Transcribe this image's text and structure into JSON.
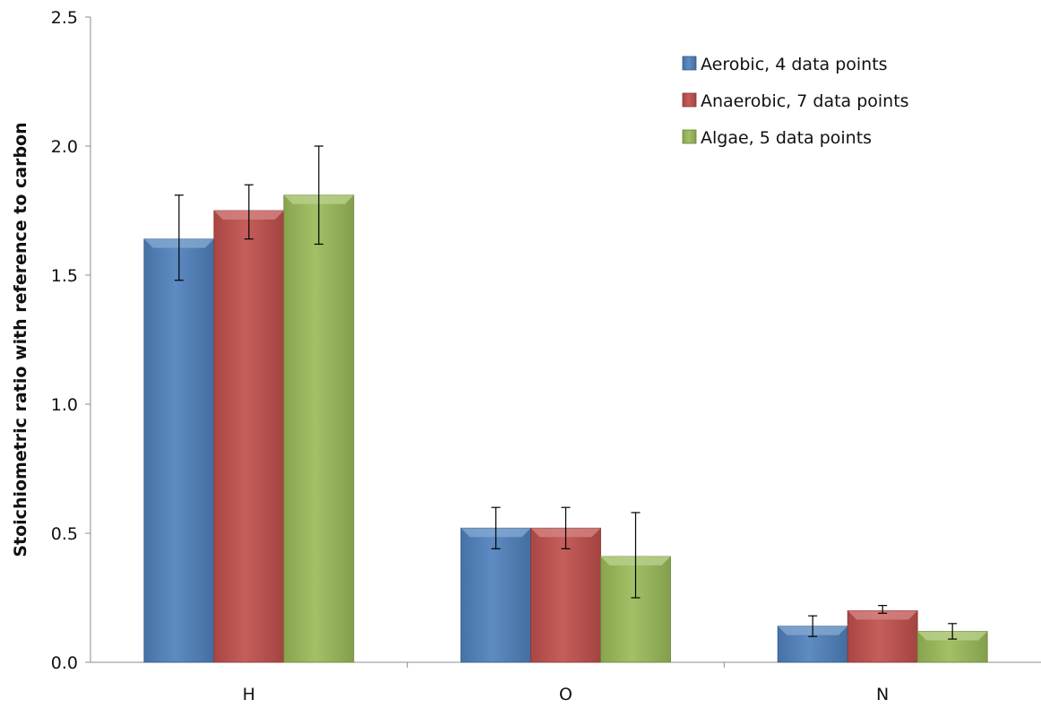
{
  "chart_data": {
    "type": "bar",
    "title": "",
    "xlabel": "",
    "ylabel": "Stoichiometric ratio with reference to carbon",
    "categories": [
      "H",
      "O",
      "N"
    ],
    "ylim": [
      0,
      2.5
    ],
    "yticks": [
      "0.0",
      "0.5",
      "1.0",
      "1.5",
      "2.0",
      "2.5"
    ],
    "grid": false,
    "legend_position": "top-right",
    "series": [
      {
        "name": "Aerobic, 4 data points",
        "color": "#4f81bd",
        "values": [
          1.64,
          0.52,
          0.14
        ],
        "error_low": [
          1.48,
          0.44,
          0.1
        ],
        "error_high": [
          1.81,
          0.6,
          0.18
        ]
      },
      {
        "name": "Anaerobic, 7 data points",
        "color": "#c0504d",
        "values": [
          1.75,
          0.52,
          0.2
        ],
        "error_low": [
          1.64,
          0.44,
          0.19
        ],
        "error_high": [
          1.85,
          0.6,
          0.22
        ]
      },
      {
        "name": "Algae, 5 data points",
        "color": "#9bbb59",
        "values": [
          1.81,
          0.41,
          0.12
        ],
        "error_low": [
          1.62,
          0.25,
          0.09
        ],
        "error_high": [
          2.0,
          0.58,
          0.15
        ]
      }
    ]
  }
}
